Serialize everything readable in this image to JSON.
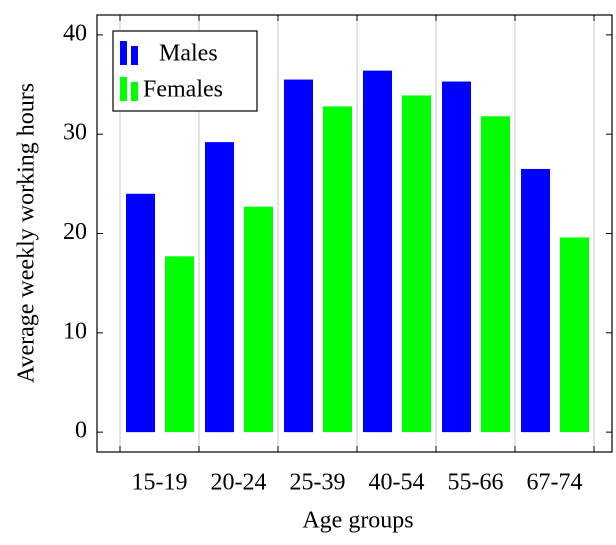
{
  "chart_data": {
    "type": "bar",
    "xlabel": "Age groups",
    "ylabel": "Average weekly working hours",
    "categories": [
      "15-19",
      "20-24",
      "25-39",
      "40-54",
      "55-66",
      "67-74"
    ],
    "series": [
      {
        "name": "Males",
        "color": "#0000ff",
        "values": [
          24,
          29.2,
          35.5,
          36.4,
          35.3,
          26.5
        ]
      },
      {
        "name": "Females",
        "color": "#00ff00",
        "values": [
          17.7,
          22.7,
          32.8,
          33.9,
          31.8,
          19.6
        ]
      }
    ],
    "ylim": [
      -2,
      42
    ],
    "yticks": [
      0,
      10,
      20,
      30,
      40
    ],
    "grid": true,
    "legend": "upper left"
  }
}
